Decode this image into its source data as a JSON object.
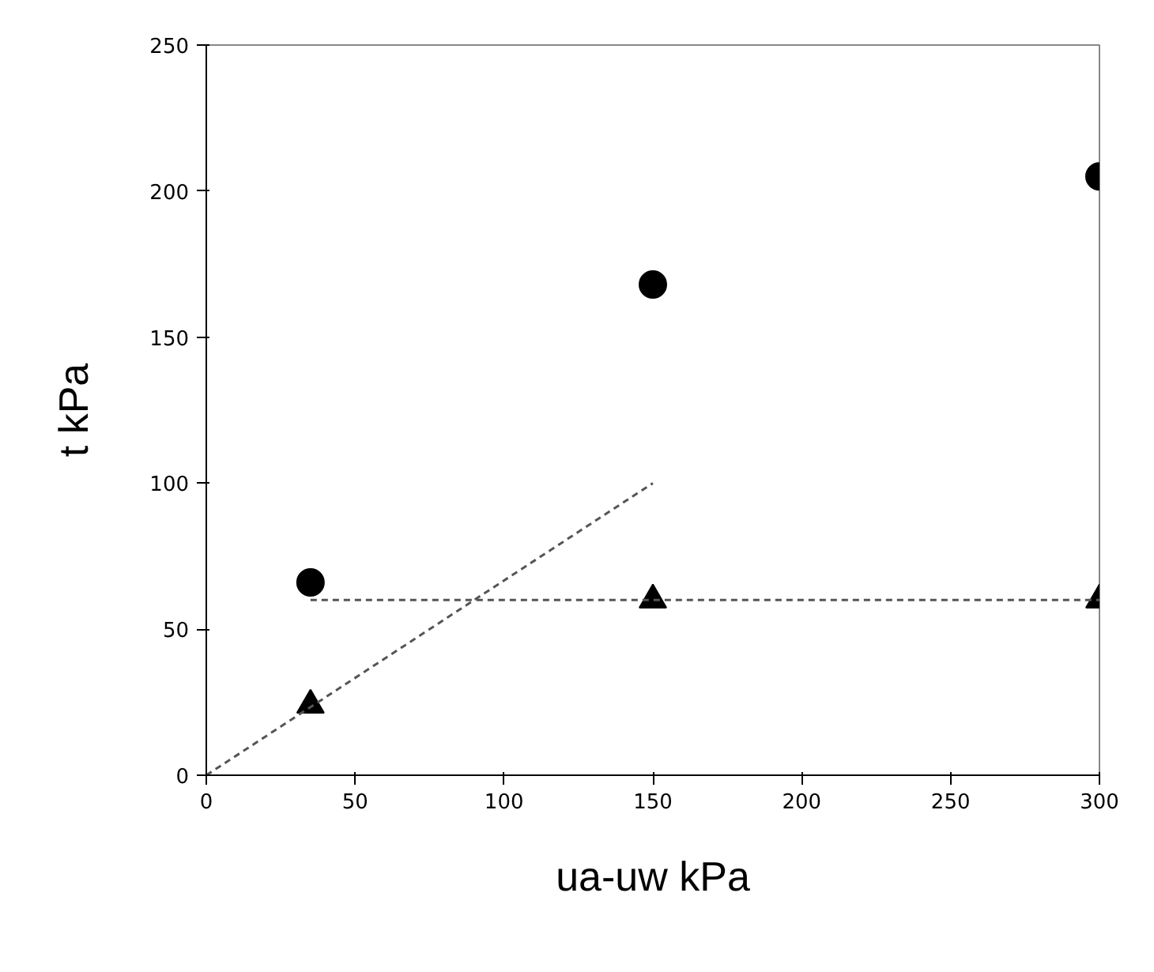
{
  "chart_data": {
    "type": "scatter",
    "xlabel": "ua-uw kPa",
    "ylabel": "t kPa",
    "xlim": [
      0,
      300
    ],
    "ylim": [
      0,
      250
    ],
    "xticks": [
      0,
      50,
      100,
      150,
      200,
      250,
      300
    ],
    "yticks": [
      0,
      50,
      100,
      150,
      200,
      250
    ],
    "grid": false,
    "series": [
      {
        "marker": "circle",
        "color": "#000000",
        "x": [
          35,
          150,
          300
        ],
        "values": [
          66,
          168,
          205
        ]
      },
      {
        "marker": "triangle",
        "color": "#000000",
        "x": [
          35,
          150,
          300
        ],
        "values": [
          24,
          60,
          60
        ]
      },
      {
        "type": "line",
        "marker": "none",
        "line_style": "dashed",
        "color": "#555555",
        "x": [
          0,
          150
        ],
        "values": [
          0,
          100
        ]
      },
      {
        "type": "line",
        "marker": "none",
        "line_style": "dashed",
        "color": "#555555",
        "x": [
          35,
          300
        ],
        "values": [
          60,
          60
        ]
      }
    ]
  }
}
